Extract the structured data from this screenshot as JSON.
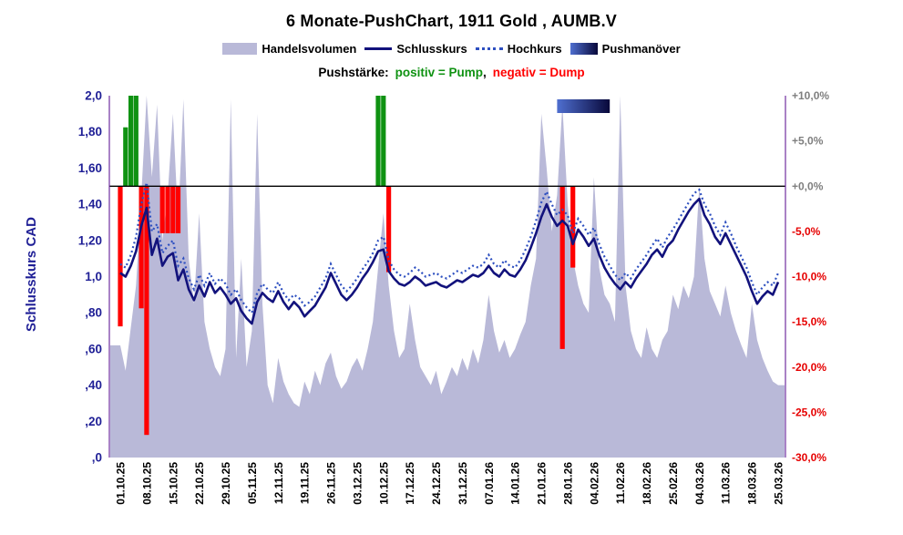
{
  "title": "6 Monate-PushChart, 1911 Gold , AUMB.V",
  "legend": {
    "volume": "Handelsvolumen",
    "close": "Schlusskurs",
    "high": "Hochkurs",
    "push": "Pushmanöver"
  },
  "subtitle": {
    "label": "Pushstärke:",
    "pump": "positiv = Pump",
    "separator": ",",
    "dump": "negativ = Dump"
  },
  "left_axis_title": "Schlusskurs CAD",
  "colors": {
    "volume_fill": "#b9b9d8",
    "close_line": "#12127c",
    "high_line": "#2d4fc0",
    "pump_green": "#0f9212",
    "dump_red": "#ff0000",
    "left_axis_text": "#1f1f96",
    "right_axis_positive": "#7f7f7f",
    "right_axis_negative": "#e60000",
    "plot_border": "#7030a0",
    "zero_line": "#000000",
    "push_bar_gradient_from": "#4f6fd0",
    "push_bar_gradient_to": "#08083a"
  },
  "chart_data": {
    "type": "composite",
    "series": [
      {
        "name": "Handelsvolumen",
        "type": "area",
        "axis": "left",
        "values_key": "volume"
      },
      {
        "name": "Schlusskurs",
        "type": "line",
        "axis": "left",
        "values_key": "close"
      },
      {
        "name": "Hochkurs",
        "type": "dotted-line",
        "axis": "left",
        "values_key": "high"
      },
      {
        "name": "Pushstärke",
        "type": "bar",
        "axis": "right",
        "values_key": "pushes"
      }
    ],
    "left_axis": {
      "title": "Schlusskurs CAD",
      "range": [
        0,
        2
      ],
      "tick_labels": [
        "2,0",
        "1,80",
        "1,60",
        "1,40",
        "1,20",
        "1,0",
        ",80",
        ",60",
        ",40",
        ",20",
        ",0"
      ]
    },
    "right_axis": {
      "unit": "%",
      "range": [
        -30,
        10
      ],
      "tick_labels": [
        "+10,0%",
        "+5,0%",
        "+0,0%",
        "-5,0%",
        "-10,0%",
        "-15,0%",
        "-20,0%",
        "-25,0%",
        "-30,0%"
      ]
    },
    "x_tick_labels": [
      "01.10.25",
      "08.10.25",
      "15.10.25",
      "22.10.25",
      "29.10.25",
      "05.11.25",
      "12.11.25",
      "19.11.25",
      "26.11.25",
      "03.12.25",
      "10.12.25",
      "17.12.25",
      "24.12.25",
      "31.12.25",
      "07.01.26",
      "14.01.26",
      "21.01.26",
      "28.01.26",
      "04.02.26",
      "11.02.26",
      "18.02.26",
      "25.02.26",
      "04.03.26",
      "11.03.26",
      "18.03.26",
      "25.03.26"
    ],
    "points_per_week": 5,
    "close": [
      1.02,
      1.0,
      1.06,
      1.14,
      1.28,
      1.38,
      1.12,
      1.21,
      1.06,
      1.11,
      1.13,
      0.98,
      1.04,
      0.93,
      0.87,
      0.95,
      0.89,
      0.97,
      0.91,
      0.94,
      0.9,
      0.85,
      0.88,
      0.81,
      0.77,
      0.74,
      0.86,
      0.91,
      0.88,
      0.86,
      0.92,
      0.86,
      0.82,
      0.86,
      0.83,
      0.78,
      0.81,
      0.84,
      0.89,
      0.94,
      1.02,
      0.96,
      0.9,
      0.87,
      0.9,
      0.94,
      0.99,
      1.03,
      1.08,
      1.14,
      1.15,
      1.03,
      0.99,
      0.96,
      0.95,
      0.97,
      1.0,
      0.98,
      0.95,
      0.96,
      0.97,
      0.95,
      0.94,
      0.96,
      0.98,
      0.97,
      0.99,
      1.01,
      1.0,
      1.02,
      1.06,
      1.02,
      1.0,
      1.04,
      1.01,
      1.0,
      1.04,
      1.09,
      1.16,
      1.24,
      1.33,
      1.4,
      1.33,
      1.28,
      1.31,
      1.28,
      1.18,
      1.26,
      1.22,
      1.17,
      1.21,
      1.12,
      1.05,
      1.0,
      0.96,
      0.93,
      0.97,
      0.94,
      0.99,
      1.03,
      1.07,
      1.12,
      1.15,
      1.11,
      1.17,
      1.2,
      1.26,
      1.31,
      1.36,
      1.4,
      1.43,
      1.34,
      1.29,
      1.22,
      1.18,
      1.24,
      1.18,
      1.12,
      1.06,
      1.0,
      0.92,
      0.85,
      0.89,
      0.92,
      0.9,
      0.97
    ],
    "high": [
      1.07,
      1.05,
      1.12,
      1.22,
      1.4,
      1.52,
      1.25,
      1.29,
      1.13,
      1.17,
      1.2,
      1.06,
      1.1,
      0.99,
      0.93,
      1.01,
      0.95,
      1.02,
      0.96,
      0.99,
      0.96,
      0.9,
      0.93,
      0.87,
      0.83,
      0.8,
      0.91,
      0.96,
      0.93,
      0.91,
      0.97,
      0.91,
      0.87,
      0.9,
      0.88,
      0.84,
      0.86,
      0.89,
      0.94,
      0.99,
      1.07,
      1.01,
      0.95,
      0.92,
      0.95,
      0.99,
      1.04,
      1.08,
      1.13,
      1.2,
      1.22,
      1.09,
      1.04,
      1.01,
      1.0,
      1.02,
      1.05,
      1.03,
      1.0,
      1.01,
      1.02,
      1.0,
      0.99,
      1.01,
      1.03,
      1.02,
      1.04,
      1.06,
      1.05,
      1.07,
      1.12,
      1.07,
      1.05,
      1.09,
      1.06,
      1.05,
      1.09,
      1.15,
      1.22,
      1.31,
      1.41,
      1.47,
      1.4,
      1.34,
      1.37,
      1.34,
      1.24,
      1.32,
      1.28,
      1.23,
      1.27,
      1.18,
      1.11,
      1.06,
      1.01,
      0.98,
      1.02,
      0.99,
      1.04,
      1.08,
      1.12,
      1.17,
      1.21,
      1.16,
      1.22,
      1.26,
      1.31,
      1.36,
      1.41,
      1.46,
      1.48,
      1.4,
      1.35,
      1.28,
      1.23,
      1.3,
      1.24,
      1.17,
      1.11,
      1.05,
      0.97,
      0.9,
      0.94,
      0.97,
      0.95,
      1.02
    ],
    "volume": [
      0.62,
      0.48,
      0.72,
      0.95,
      1.45,
      2.0,
      1.55,
      1.95,
      1.2,
      1.45,
      1.9,
      1.3,
      1.98,
      1.1,
      0.85,
      1.35,
      0.75,
      0.6,
      0.5,
      0.45,
      0.6,
      1.98,
      0.55,
      1.1,
      0.5,
      0.7,
      1.9,
      0.85,
      0.4,
      0.3,
      0.55,
      0.42,
      0.35,
      0.3,
      0.28,
      0.42,
      0.35,
      0.48,
      0.4,
      0.52,
      0.58,
      0.45,
      0.38,
      0.42,
      0.5,
      0.55,
      0.48,
      0.6,
      0.75,
      1.05,
      1.35,
      0.95,
      0.7,
      0.55,
      0.6,
      0.85,
      0.65,
      0.5,
      0.45,
      0.4,
      0.48,
      0.35,
      0.42,
      0.5,
      0.45,
      0.55,
      0.48,
      0.6,
      0.52,
      0.65,
      0.9,
      0.7,
      0.58,
      0.65,
      0.55,
      0.6,
      0.68,
      0.75,
      0.95,
      1.1,
      1.9,
      1.6,
      1.25,
      1.45,
      1.95,
      1.4,
      1.1,
      0.95,
      0.85,
      0.8,
      1.55,
      1.05,
      0.9,
      0.85,
      0.75,
      2.0,
      0.95,
      0.7,
      0.6,
      0.55,
      0.72,
      0.6,
      0.55,
      0.65,
      0.7,
      0.9,
      0.82,
      0.95,
      0.88,
      1.0,
      1.5,
      1.1,
      0.92,
      0.85,
      0.78,
      0.95,
      0.8,
      0.7,
      0.62,
      0.55,
      0.85,
      0.65,
      0.55,
      0.48,
      0.42,
      0.4
    ],
    "pushes": [
      {
        "day": 0,
        "pct": -15.5
      },
      {
        "day": 1,
        "pct": 6.5
      },
      {
        "day": 2,
        "pct": 10
      },
      {
        "day": 3,
        "pct": 10
      },
      {
        "day": 4,
        "pct": -13.5
      },
      {
        "day": 5,
        "pct": -27.5
      },
      {
        "day": 8,
        "pct": -5.2
      },
      {
        "day": 9,
        "pct": -5.2
      },
      {
        "day": 10,
        "pct": -5.2
      },
      {
        "day": 11,
        "pct": -5.2
      },
      {
        "day": 49,
        "pct": 10
      },
      {
        "day": 50,
        "pct": 10
      },
      {
        "day": 51,
        "pct": -9.5
      },
      {
        "day": 84,
        "pct": -18
      },
      {
        "day": 86,
        "pct": -9
      }
    ],
    "push_maneuver_bar": {
      "start_day": 83,
      "end_day": 93
    }
  }
}
